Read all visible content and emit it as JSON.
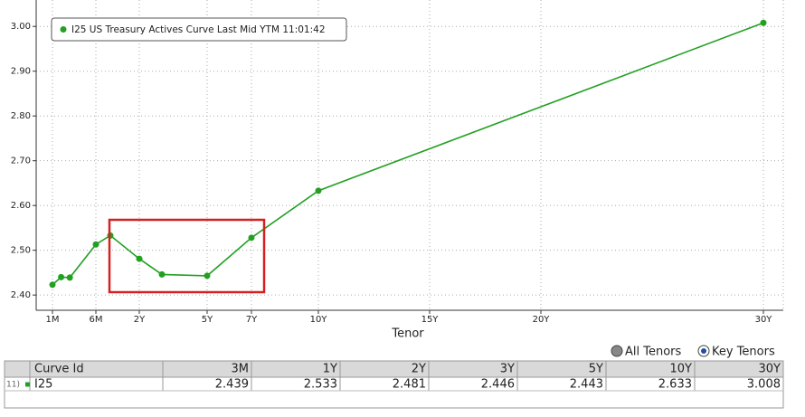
{
  "chart_data": {
    "type": "line",
    "x_label": "Tenor",
    "x": [
      0.0833,
      0.1667,
      0.25,
      0.5,
      1,
      2,
      3,
      5,
      7,
      10,
      30
    ],
    "series": [
      {
        "name": "I25 US Treasury Actives Curve Last Mid YTM 11:01:42",
        "color": "#22a022",
        "values": [
          2.423,
          2.44,
          2.439,
          2.513,
          2.533,
          2.481,
          2.446,
          2.443,
          2.528,
          2.633,
          3.008
        ]
      }
    ],
    "xlim": [
      -0.07,
      30.89
    ],
    "xticks": [
      {
        "value": 0.0833,
        "label": "1M"
      },
      {
        "value": 0.5,
        "label": "6M"
      },
      {
        "value": 2,
        "label": "2Y"
      },
      {
        "value": 5,
        "label": "5Y"
      },
      {
        "value": 7,
        "label": "7Y"
      },
      {
        "value": 10,
        "label": "10Y"
      },
      {
        "value": 15,
        "label": "15Y"
      },
      {
        "value": 20,
        "label": "20Y"
      },
      {
        "value": 30,
        "label": "30Y"
      }
    ],
    "ylim": [
      2.366,
      3.059
    ],
    "yticks": [
      {
        "value": 2.4,
        "label": "2.40"
      },
      {
        "value": 2.5,
        "label": "2.50"
      },
      {
        "value": 2.6,
        "label": "2.60"
      },
      {
        "value": 2.7,
        "label": "2.70"
      },
      {
        "value": 2.8,
        "label": "2.80"
      },
      {
        "value": 2.9,
        "label": "2.90"
      },
      {
        "value": 3.0,
        "label": "3.00"
      }
    ],
    "grid": true,
    "legend": "top-left"
  },
  "controls": {
    "options": [
      "All Tenors",
      "Key Tenors"
    ],
    "selected": 1
  },
  "table": {
    "header": [
      "Curve Id",
      "3M",
      "1Y",
      "2Y",
      "3Y",
      "5Y",
      "10Y",
      "30Y"
    ],
    "rows": [
      {
        "number": "11)",
        "id": "I25",
        "values": [
          2.439,
          2.533,
          2.481,
          2.446,
          2.443,
          2.633,
          3.008
        ]
      }
    ]
  }
}
